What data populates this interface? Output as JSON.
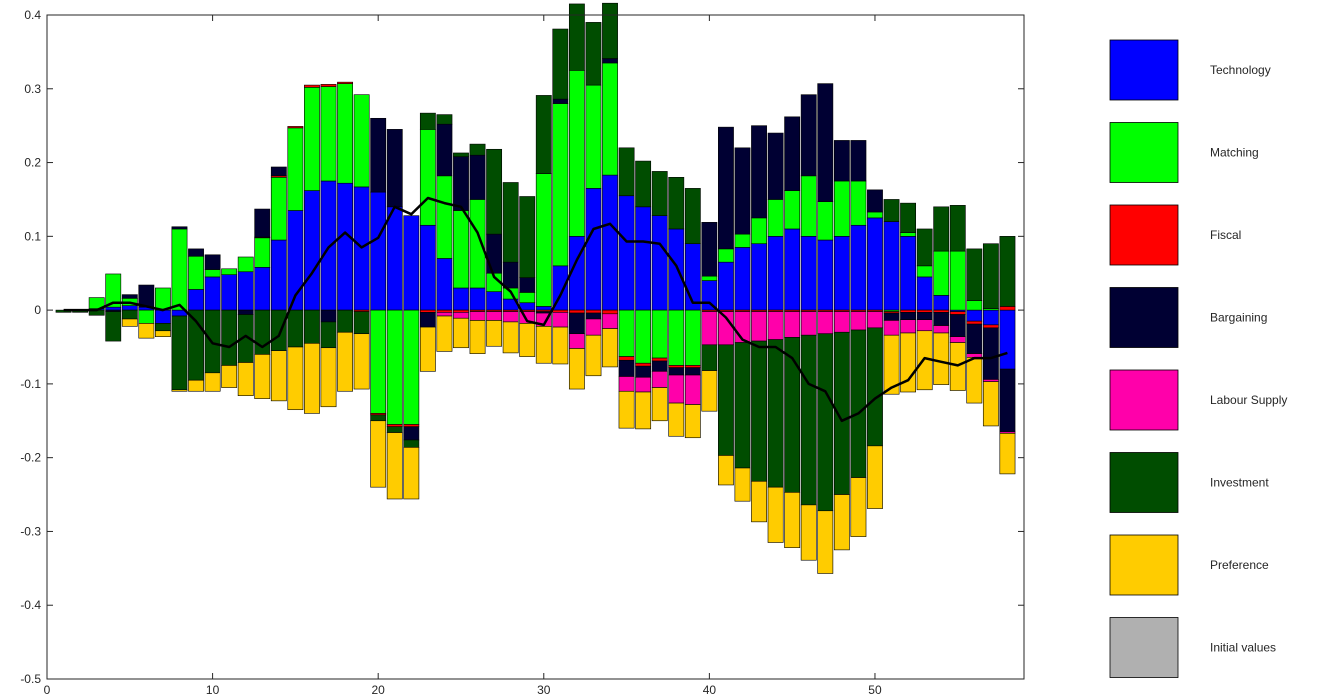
{
  "chart_data": {
    "type": "bar",
    "subtype": "stacked-bar-with-line",
    "title": "",
    "xlabel": "",
    "ylabel": "",
    "xlim": [
      0,
      59
    ],
    "ylim": [
      -0.5,
      0.4
    ],
    "grid": false,
    "legend_placement": "right",
    "x_ticks": [
      0,
      10,
      20,
      30,
      40,
      50
    ],
    "y_ticks": [
      -0.5,
      -0.4,
      -0.3,
      -0.2,
      -0.1,
      0,
      0.1,
      0.2,
      0.3,
      0.4
    ],
    "x_tick_labels": [
      "0",
      "10",
      "20",
      "30",
      "40",
      "50"
    ],
    "y_tick_labels": [
      "-0.5",
      "-0.4",
      "-0.3",
      "-0.2",
      "-0.1",
      "0",
      "0.1",
      "0.2",
      "0.3",
      "0.4"
    ],
    "x": [
      1,
      2,
      3,
      4,
      5,
      6,
      7,
      8,
      9,
      10,
      11,
      12,
      13,
      14,
      15,
      16,
      17,
      18,
      19,
      20,
      21,
      22,
      23,
      24,
      25,
      26,
      27,
      28,
      29,
      30,
      31,
      32,
      33,
      34,
      35,
      36,
      37,
      38,
      39,
      40,
      41,
      42,
      43,
      44,
      45,
      46,
      47,
      48,
      49,
      50,
      51,
      52,
      53,
      54,
      55,
      56,
      57,
      58
    ],
    "series": [
      {
        "name": "Technology",
        "color": "#0000ff",
        "values": [
          0,
          0,
          0.002,
          0.004,
          0.006,
          0.004,
          -0.018,
          -0.008,
          0.028,
          0.045,
          0.048,
          0.052,
          0.058,
          0.095,
          0.135,
          0.162,
          0.175,
          0.172,
          0.167,
          0.16,
          0.14,
          0.128,
          0.115,
          0.07,
          0.03,
          0.03,
          0.025,
          0.015,
          0.01,
          0.005,
          0.06,
          0.1,
          0.165,
          0.183,
          0.155,
          0.14,
          0.128,
          0.11,
          0.09,
          0.04,
          0.065,
          0.085,
          0.09,
          0.1,
          0.11,
          0.1,
          0.095,
          0.1,
          0.115,
          0.125,
          0.12,
          0.1,
          0.045,
          0.02,
          -0.002,
          -0.015,
          -0.02,
          -0.08
        ]
      },
      {
        "name": "Matching",
        "color": "#00ff00",
        "values": [
          0,
          0,
          0.015,
          0.045,
          0.01,
          -0.018,
          0.03,
          0.11,
          0.045,
          0.01,
          0.008,
          0.02,
          0.04,
          0.085,
          0.112,
          0.14,
          0.128,
          0.135,
          0.125,
          -0.14,
          -0.155,
          -0.155,
          0.13,
          0.112,
          0.105,
          0.12,
          0.025,
          0.015,
          0.014,
          0.18,
          0.22,
          0.225,
          0.14,
          0.152,
          -0.063,
          -0.072,
          -0.065,
          -0.075,
          -0.075,
          0.006,
          0.018,
          0.018,
          0.035,
          0.05,
          0.052,
          0.082,
          0.052,
          0.075,
          0.06,
          0.008,
          -0.002,
          0.005,
          0.015,
          0.06,
          0.08,
          0.013,
          0.002,
          0
        ]
      },
      {
        "name": "Fiscal",
        "color": "#ff0000",
        "values": [
          0,
          0,
          0,
          0,
          0,
          0,
          0,
          0,
          0,
          0,
          0,
          0,
          0.001,
          0.002,
          0.002,
          0.003,
          0.003,
          0.002,
          -0.002,
          -0.002,
          -0.003,
          -0.003,
          -0.003,
          -0.003,
          -0.003,
          -0.002,
          -0.002,
          -0.002,
          -0.002,
          -0.002,
          -0.003,
          -0.004,
          -0.004,
          -0.005,
          -0.005,
          -0.004,
          -0.004,
          -0.003,
          -0.003,
          -0.002,
          -0.002,
          -0.002,
          -0.002,
          -0.002,
          -0.002,
          -0.002,
          -0.002,
          -0.002,
          -0.002,
          -0.002,
          -0.002,
          -0.003,
          -0.003,
          -0.003,
          -0.004,
          -0.004,
          -0.004,
          0.005
        ]
      },
      {
        "name": "Bargaining",
        "color": "#000033",
        "values": [
          0,
          0,
          0,
          -0.002,
          0.005,
          0.03,
          0,
          0.003,
          0.01,
          0.02,
          0,
          -0.006,
          0.038,
          0.012,
          0,
          0,
          -0.016,
          0,
          0,
          0.1,
          0.105,
          -0.018,
          -0.02,
          0.07,
          0.073,
          0.06,
          0.053,
          0.035,
          0.02,
          -0.002,
          0.006,
          -0.028,
          -0.008,
          0.006,
          -0.022,
          -0.015,
          -0.014,
          -0.01,
          -0.01,
          0.073,
          0.165,
          0.117,
          0.125,
          0.09,
          0.1,
          0.11,
          0.16,
          0.055,
          0.055,
          0.03,
          -0.01,
          -0.01,
          -0.01,
          -0.018,
          -0.03,
          -0.04,
          -0.07,
          -0.085
        ]
      },
      {
        "name": "Labour Supply",
        "color": "#ff00aa",
        "values": [
          0,
          0,
          0,
          0,
          0,
          0,
          0,
          0,
          0,
          0,
          0,
          0,
          0,
          0,
          0,
          0,
          0,
          0,
          0,
          0,
          0,
          0,
          0,
          -0.005,
          -0.008,
          -0.012,
          -0.012,
          -0.014,
          -0.016,
          -0.018,
          -0.02,
          -0.02,
          -0.022,
          -0.02,
          -0.02,
          -0.02,
          -0.022,
          -0.038,
          -0.04,
          -0.045,
          -0.045,
          -0.042,
          -0.04,
          -0.038,
          -0.035,
          -0.032,
          -0.03,
          -0.028,
          -0.025,
          -0.022,
          -0.02,
          -0.018,
          -0.015,
          -0.01,
          -0.008,
          -0.005,
          -0.003,
          -0.002
        ]
      },
      {
        "name": "Investment",
        "color": "#004d00",
        "values": [
          -0.003,
          -0.003,
          -0.007,
          -0.04,
          -0.012,
          0,
          -0.01,
          -0.1,
          -0.095,
          -0.085,
          -0.075,
          -0.065,
          -0.06,
          -0.055,
          -0.05,
          -0.045,
          -0.035,
          -0.03,
          -0.03,
          -0.008,
          -0.008,
          -0.01,
          0.022,
          0.013,
          0.005,
          0.015,
          0.115,
          0.108,
          0.11,
          0.106,
          0.095,
          0.09,
          0.085,
          0.075,
          0.065,
          0.062,
          0.06,
          0.07,
          0.075,
          -0.035,
          -0.15,
          -0.17,
          -0.19,
          -0.2,
          -0.21,
          -0.23,
          -0.24,
          -0.22,
          -0.2,
          -0.16,
          0.03,
          0.04,
          0.05,
          0.06,
          0.062,
          0.07,
          0.088,
          0.095
        ]
      },
      {
        "name": "Preference",
        "color": "#ffcc00",
        "values": [
          0,
          0,
          0,
          0,
          -0.01,
          -0.02,
          -0.008,
          -0.002,
          -0.015,
          -0.025,
          -0.03,
          -0.045,
          -0.06,
          -0.068,
          -0.085,
          -0.095,
          -0.08,
          -0.08,
          -0.075,
          -0.09,
          -0.09,
          -0.07,
          -0.06,
          -0.048,
          -0.04,
          -0.045,
          -0.035,
          -0.042,
          -0.045,
          -0.05,
          -0.05,
          -0.055,
          -0.055,
          -0.052,
          -0.05,
          -0.05,
          -0.045,
          -0.045,
          -0.045,
          -0.055,
          -0.04,
          -0.045,
          -0.055,
          -0.075,
          -0.075,
          -0.075,
          -0.085,
          -0.075,
          -0.08,
          -0.085,
          -0.08,
          -0.08,
          -0.08,
          -0.07,
          -0.065,
          -0.062,
          -0.06,
          -0.055
        ]
      },
      {
        "name": "Initial values",
        "color": "#b0b0b0",
        "values": [
          0,
          0,
          0,
          0,
          0,
          0,
          0,
          0,
          0,
          0,
          0,
          0,
          0,
          0,
          0,
          0,
          0,
          0,
          0,
          0,
          0,
          0,
          0,
          0,
          0,
          0,
          0,
          0,
          0,
          0,
          0,
          0,
          0,
          0,
          0,
          0,
          0,
          0,
          0,
          0,
          0,
          0,
          0,
          0,
          0,
          0,
          0,
          0,
          0,
          0,
          0,
          0,
          0,
          0,
          0,
          0,
          0,
          0
        ]
      }
    ],
    "line": {
      "color": "#000000",
      "values": [
        0,
        0,
        0,
        0.01,
        0.01,
        0.005,
        0,
        0.007,
        -0.015,
        -0.045,
        -0.05,
        -0.035,
        -0.05,
        -0.035,
        0.02,
        0.05,
        0.085,
        0.105,
        0.085,
        0.098,
        0.14,
        0.13,
        0.152,
        0.145,
        0.14,
        0.105,
        0.045,
        0.025,
        -0.015,
        -0.02,
        0.02,
        0.068,
        0.11,
        0.117,
        0.093,
        0.093,
        0.09,
        0.06,
        0.01,
        0.01,
        -0.01,
        -0.04,
        -0.05,
        -0.05,
        -0.065,
        -0.1,
        -0.11,
        -0.15,
        -0.14,
        -0.12,
        -0.105,
        -0.095,
        -0.065,
        -0.07,
        -0.075,
        -0.065,
        -0.065,
        -0.058
      ]
    }
  }
}
